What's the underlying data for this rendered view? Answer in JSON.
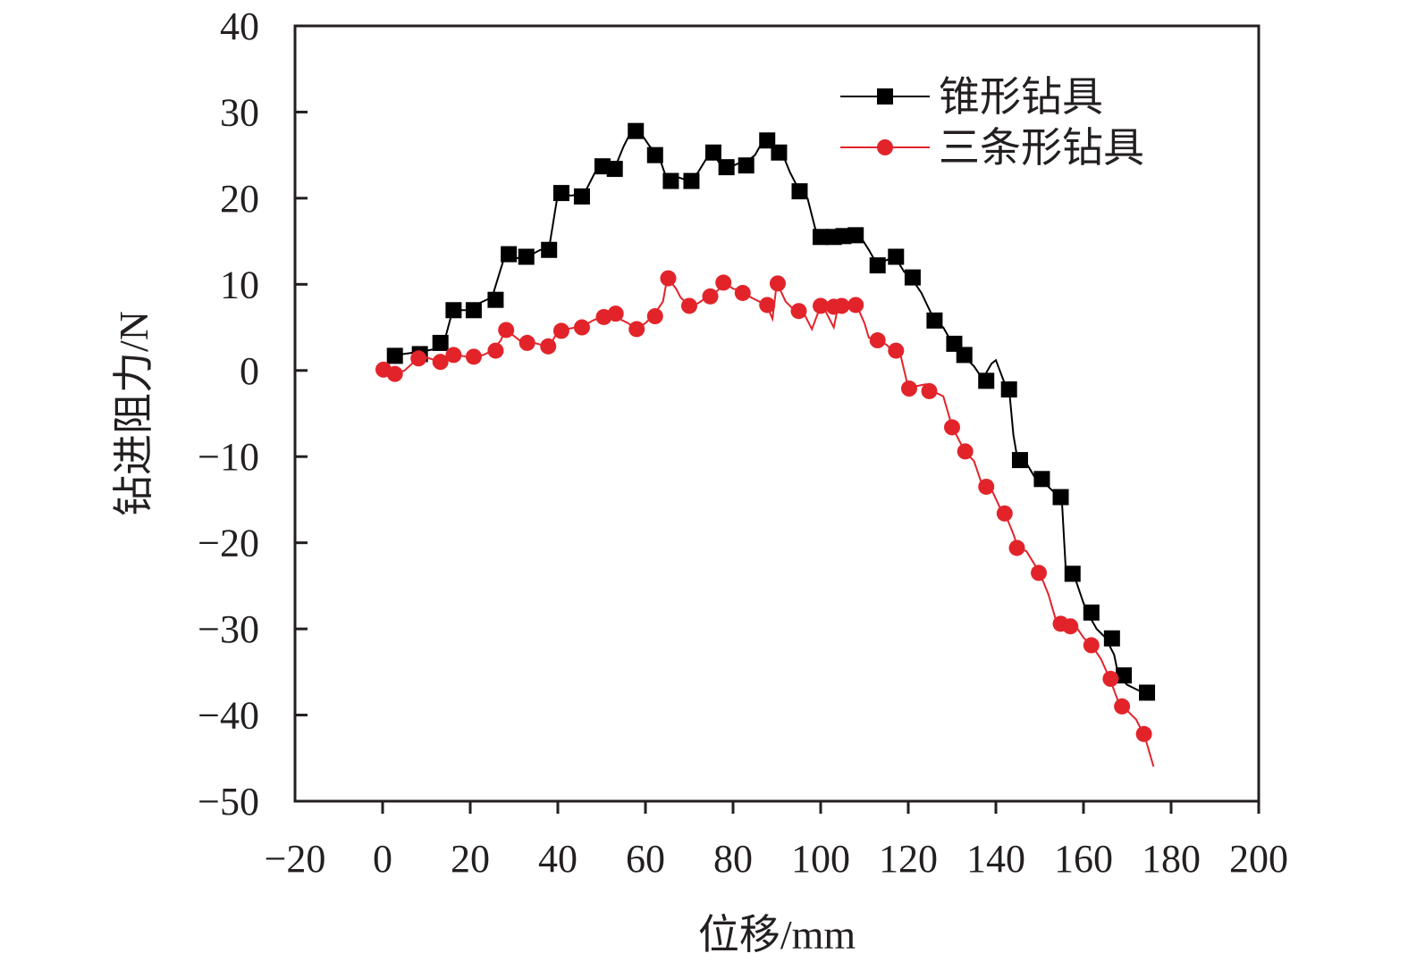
{
  "chart_data": {
    "type": "line",
    "xlabel": "位移/mm",
    "ylabel": "钻进阻力/N",
    "xlim": [
      -20,
      200
    ],
    "ylim": [
      -50,
      40
    ],
    "xticks": [
      "−20",
      "0",
      "20",
      "40",
      "60",
      "80",
      "100",
      "120",
      "140",
      "160",
      "180",
      "200"
    ],
    "yticks": [
      "40",
      "30",
      "20",
      "10",
      "0",
      "−10",
      "−20",
      "−30",
      "−40",
      "−50"
    ],
    "legend_position": "top-right",
    "grid": false,
    "series": [
      {
        "name": "锥形钻具",
        "color": "#000000",
        "marker": "square",
        "line": [
          [
            0,
            0
          ],
          [
            3,
            1.8
          ],
          [
            6,
            2
          ],
          [
            9,
            2.2
          ],
          [
            12,
            2.5
          ],
          [
            14,
            3.2
          ],
          [
            16,
            7
          ],
          [
            19,
            7
          ],
          [
            22,
            7.8
          ],
          [
            25,
            8.5
          ],
          [
            28,
            13.5
          ],
          [
            30,
            13
          ],
          [
            33,
            13.2
          ],
          [
            36,
            14
          ],
          [
            38,
            14.2
          ],
          [
            40,
            20.5
          ],
          [
            43,
            20.3
          ],
          [
            46,
            20.5
          ],
          [
            49,
            23.5
          ],
          [
            51,
            24
          ],
          [
            53,
            23.5
          ],
          [
            55,
            26
          ],
          [
            57,
            28
          ],
          [
            59,
            27.5
          ],
          [
            61,
            26
          ],
          [
            63,
            25
          ],
          [
            65,
            22
          ],
          [
            67,
            22.5
          ],
          [
            70,
            22
          ],
          [
            72,
            23
          ],
          [
            75,
            25.5
          ],
          [
            77,
            24
          ],
          [
            79,
            23.5
          ],
          [
            81,
            24
          ],
          [
            83,
            24.2
          ],
          [
            85,
            25
          ],
          [
            87,
            26.8
          ],
          [
            89,
            26
          ],
          [
            91,
            25.5
          ],
          [
            93,
            23
          ],
          [
            95,
            21
          ],
          [
            97,
            20
          ],
          [
            99,
            16
          ],
          [
            101,
            15.5
          ],
          [
            103,
            15.5
          ],
          [
            105,
            15.8
          ],
          [
            107,
            15.7
          ],
          [
            109,
            15.6
          ],
          [
            111,
            14
          ],
          [
            113,
            12.2
          ],
          [
            115,
            12.8
          ],
          [
            117,
            13.2
          ],
          [
            119,
            11.5
          ],
          [
            121,
            10.5
          ],
          [
            123,
            9
          ],
          [
            126,
            5.8
          ],
          [
            128,
            5
          ],
          [
            130,
            3.2
          ],
          [
            132,
            2
          ],
          [
            135,
            0.5
          ],
          [
            137,
            -1
          ],
          [
            139,
            0.8
          ],
          [
            140,
            1.2
          ],
          [
            142,
            -1.5
          ],
          [
            143,
            -2
          ],
          [
            144,
            -7.5
          ],
          [
            145,
            -10.5
          ],
          [
            147,
            -10.8
          ],
          [
            149,
            -12.5
          ],
          [
            151,
            -13
          ],
          [
            153,
            -14
          ],
          [
            155,
            -14.5
          ],
          [
            156,
            -23.5
          ],
          [
            158,
            -24
          ],
          [
            160,
            -27
          ],
          [
            161,
            -28.2
          ],
          [
            163,
            -30
          ],
          [
            165,
            -31
          ],
          [
            167,
            -33
          ],
          [
            168,
            -35.5
          ],
          [
            170,
            -36.5
          ],
          [
            172,
            -37
          ],
          [
            174,
            -37.5
          ]
        ],
        "markers": [
          [
            2.8,
            1.7
          ],
          [
            8.5,
            1.9
          ],
          [
            13.2,
            3.2
          ],
          [
            16.2,
            7
          ],
          [
            20.8,
            7
          ],
          [
            25.8,
            8.2
          ],
          [
            28.8,
            13.5
          ],
          [
            32.8,
            13.2
          ],
          [
            38,
            14
          ],
          [
            40.8,
            20.6
          ],
          [
            45.5,
            20.2
          ],
          [
            50.2,
            23.7
          ],
          [
            53,
            23.4
          ],
          [
            57.8,
            27.8
          ],
          [
            62.2,
            25
          ],
          [
            65.8,
            22
          ],
          [
            70.5,
            22
          ],
          [
            75.5,
            25.3
          ],
          [
            78.5,
            23.6
          ],
          [
            83,
            23.8
          ],
          [
            87.8,
            26.7
          ],
          [
            90.5,
            25.3
          ],
          [
            95.2,
            20.8
          ],
          [
            100,
            15.5
          ],
          [
            103,
            15.5
          ],
          [
            105.2,
            15.6
          ],
          [
            108,
            15.7
          ],
          [
            113,
            12.2
          ],
          [
            117.2,
            13.2
          ],
          [
            121,
            10.8
          ],
          [
            126,
            5.8
          ],
          [
            130.5,
            3.1
          ],
          [
            132.8,
            1.8
          ],
          [
            137.8,
            -1.2
          ],
          [
            143,
            -2.2
          ],
          [
            145.5,
            -10.4
          ],
          [
            150.5,
            -12.6
          ],
          [
            154.8,
            -14.7
          ],
          [
            157.5,
            -23.6
          ],
          [
            161.8,
            -28.1
          ],
          [
            166.5,
            -31.1
          ],
          [
            169.2,
            -35.4
          ],
          [
            174.5,
            -37.4
          ]
        ]
      },
      {
        "name": "三条形钻具",
        "color": "#e2242a",
        "marker": "circle",
        "line": [
          [
            0,
            0
          ],
          [
            2,
            0.2
          ],
          [
            3,
            -0.3
          ],
          [
            5,
            0
          ],
          [
            8,
            1.4
          ],
          [
            10,
            1.5
          ],
          [
            12,
            1.2
          ],
          [
            13,
            1
          ],
          [
            15,
            1.3
          ],
          [
            17,
            1.8
          ],
          [
            19,
            1.6
          ],
          [
            21,
            1.6
          ],
          [
            23,
            1.8
          ],
          [
            25,
            2.3
          ],
          [
            27,
            3.5
          ],
          [
            28,
            4.8
          ],
          [
            30,
            4
          ],
          [
            32,
            3.2
          ],
          [
            34,
            3.3
          ],
          [
            36,
            3
          ],
          [
            38,
            2.8
          ],
          [
            40,
            4.5
          ],
          [
            42,
            4.8
          ],
          [
            44,
            5
          ],
          [
            46,
            5.2
          ],
          [
            48,
            5.8
          ],
          [
            50,
            6.2
          ],
          [
            52,
            6.8
          ],
          [
            54,
            6
          ],
          [
            56,
            5.5
          ],
          [
            58,
            4.8
          ],
          [
            60,
            5.5
          ],
          [
            62,
            6.5
          ],
          [
            64,
            8
          ],
          [
            65,
            10.8
          ],
          [
            67,
            9.5
          ],
          [
            68,
            8.5
          ],
          [
            70,
            7.5
          ],
          [
            72,
            7.8
          ],
          [
            74,
            8.5
          ],
          [
            76,
            9
          ],
          [
            78,
            10.2
          ],
          [
            80,
            9.5
          ],
          [
            82,
            9.3
          ],
          [
            84,
            8.5
          ],
          [
            86,
            8
          ],
          [
            88,
            7.2
          ],
          [
            89,
            6
          ],
          [
            90,
            10.2
          ],
          [
            92,
            8
          ],
          [
            94,
            7
          ],
          [
            96,
            6.8
          ],
          [
            98,
            4.8
          ],
          [
            100,
            7.5
          ],
          [
            101,
            7
          ],
          [
            103,
            5
          ],
          [
            104,
            7.5
          ],
          [
            106,
            7.5
          ],
          [
            108,
            7.8
          ],
          [
            110,
            5.5
          ],
          [
            111,
            3.8
          ],
          [
            113,
            3.5
          ],
          [
            115,
            3
          ],
          [
            117,
            2
          ],
          [
            118,
            2.3
          ],
          [
            120,
            -2
          ],
          [
            122,
            -1.8
          ],
          [
            124,
            -1.6
          ],
          [
            126,
            -2.5
          ],
          [
            128,
            -3
          ],
          [
            130,
            -6.5
          ],
          [
            133,
            -9.5
          ],
          [
            135,
            -10.5
          ],
          [
            137,
            -13.5
          ],
          [
            139,
            -13.8
          ],
          [
            141,
            -16
          ],
          [
            142,
            -16.5
          ],
          [
            144,
            -19
          ],
          [
            145,
            -20.5
          ],
          [
            147,
            -21
          ],
          [
            150,
            -23.5
          ],
          [
            152,
            -26
          ],
          [
            154,
            -29.5
          ],
          [
            156,
            -29.8
          ],
          [
            158,
            -29.5
          ],
          [
            160,
            -31
          ],
          [
            162,
            -32
          ],
          [
            164,
            -33.5
          ],
          [
            166,
            -35.8
          ],
          [
            168,
            -38.5
          ],
          [
            170,
            -39.5
          ],
          [
            172,
            -40.5
          ],
          [
            174,
            -42.5
          ],
          [
            176,
            -46
          ]
        ],
        "markers": [
          [
            0.2,
            0.1
          ],
          [
            2.8,
            -0.4
          ],
          [
            8.2,
            1.4
          ],
          [
            13.2,
            1
          ],
          [
            16.2,
            1.8
          ],
          [
            20.8,
            1.6
          ],
          [
            25.8,
            2.3
          ],
          [
            28.2,
            4.7
          ],
          [
            33,
            3.2
          ],
          [
            37.8,
            2.8
          ],
          [
            40.8,
            4.6
          ],
          [
            45.5,
            5
          ],
          [
            50.5,
            6.2
          ],
          [
            53.2,
            6.6
          ],
          [
            58,
            4.8
          ],
          [
            62.2,
            6.3
          ],
          [
            65.2,
            10.7
          ],
          [
            70,
            7.5
          ],
          [
            74.8,
            8.6
          ],
          [
            77.8,
            10.2
          ],
          [
            82.2,
            9
          ],
          [
            87.8,
            7.6
          ],
          [
            90.2,
            10.1
          ],
          [
            95,
            6.9
          ],
          [
            100,
            7.5
          ],
          [
            103,
            7.4
          ],
          [
            104.8,
            7.5
          ],
          [
            108,
            7.6
          ],
          [
            113,
            3.5
          ],
          [
            117.2,
            2.3
          ],
          [
            120.2,
            -2.1
          ],
          [
            124.8,
            -2.4
          ],
          [
            130,
            -6.6
          ],
          [
            133,
            -9.4
          ],
          [
            137.8,
            -13.5
          ],
          [
            142,
            -16.6
          ],
          [
            144.8,
            -20.6
          ],
          [
            149.8,
            -23.5
          ],
          [
            154.8,
            -29.4
          ],
          [
            157,
            -29.7
          ],
          [
            161.8,
            -31.9
          ],
          [
            166.2,
            -35.8
          ],
          [
            168.8,
            -39
          ],
          [
            173.8,
            -42.2
          ]
        ]
      }
    ]
  }
}
